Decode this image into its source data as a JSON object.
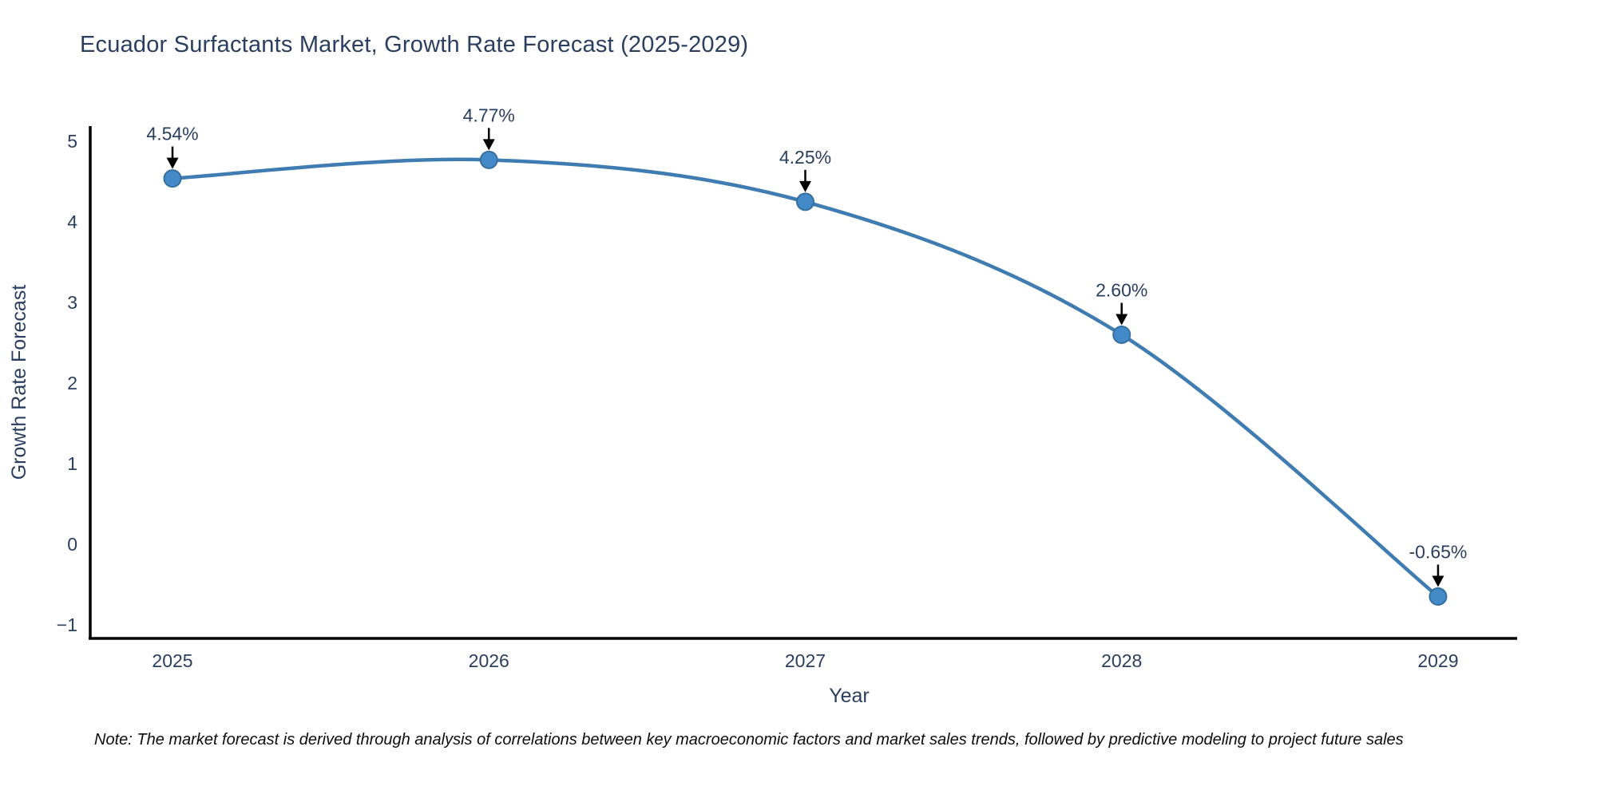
{
  "page": {
    "title": "Ecuador Surfactants Market, Growth Rate Forecast (2025-2029)",
    "note": "Note: The market forecast is derived through analysis of correlations between key macroeconomic factors and market sales trends, followed by predictive modeling to project future sales"
  },
  "colors": {
    "title_text": "#2a3f5f",
    "axis_text": "#2a3f5f",
    "annotation_text": "#2a3f5f",
    "axis_line": "#000000",
    "arrow": "#000000",
    "line": "#3e7cb1",
    "marker_fill": "#4489c8",
    "marker_edge": "#35709e",
    "background": "#ffffff"
  },
  "chart_data": {
    "type": "line",
    "title": "Ecuador Surfactants Market, Growth Rate Forecast (2025-2029)",
    "x": [
      2025,
      2026,
      2027,
      2028,
      2029
    ],
    "series": [
      {
        "name": "Growth Rate Forecast",
        "values": [
          4.54,
          4.77,
          4.25,
          2.6,
          -0.65
        ]
      }
    ],
    "point_labels": [
      "4.54%",
      "4.77%",
      "4.25%",
      "2.60%",
      "-0.65%"
    ],
    "xlabel": "Year",
    "ylabel": "Growth Rate Forecast",
    "xticks": [
      2025,
      2026,
      2027,
      2028,
      2029
    ],
    "xticklabels": [
      "2025",
      "2026",
      "2027",
      "2028",
      "2029"
    ],
    "yticks": [
      5,
      4,
      3,
      2,
      1,
      0,
      -1
    ],
    "yticklabels": [
      "5",
      "4",
      "3",
      "2",
      "1",
      "0",
      "−1"
    ],
    "xlim": [
      2024.74,
      2029.25
    ],
    "ylim": [
      -1.17,
      5.19
    ],
    "grid": false,
    "legend": false,
    "line_shape": "spline",
    "annotations": "each point labeled with its value and a black arrow pointing down to the marker"
  }
}
